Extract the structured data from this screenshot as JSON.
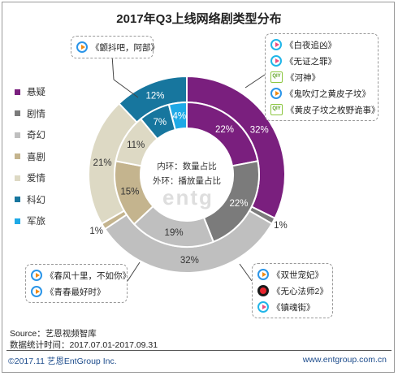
{
  "title": "2017年Q3上线网络剧类型分布",
  "legend": [
    {
      "label": "悬疑",
      "color": "#7a1f7e"
    },
    {
      "label": "剧情",
      "color": "#7b7b7b"
    },
    {
      "label": "奇幻",
      "color": "#bfbfbf"
    },
    {
      "label": "喜剧",
      "color": "#c4b48e"
    },
    {
      "label": "爱情",
      "color": "#ddd9c4"
    },
    {
      "label": "科幻",
      "color": "#17769e"
    },
    {
      "label": "军旅",
      "color": "#1ea9e6"
    }
  ],
  "center": {
    "inner": "内环：数量占比",
    "outer": "外环：播放量占比"
  },
  "watermark": "entg",
  "chart_data": {
    "type": "donut",
    "title": "2017年Q3上线网络剧类型分布",
    "categories": [
      "悬疑",
      "剧情",
      "奇幻",
      "喜剧",
      "爱情",
      "科幻",
      "军旅"
    ],
    "series": [
      {
        "name": "播放量占比",
        "ring": "outer",
        "values": [
          32,
          1,
          32,
          1,
          21,
          12,
          0
        ],
        "labels": [
          "32%",
          "1%",
          "32%",
          "1%",
          "21%",
          "12%",
          ""
        ]
      },
      {
        "name": "数量占比",
        "ring": "inner",
        "values": [
          22,
          22,
          19,
          15,
          11,
          7,
          4
        ],
        "labels": [
          "22%",
          "22%",
          "19%",
          "15%",
          "11%",
          "7%",
          "4%"
        ]
      }
    ]
  },
  "callouts": {
    "top_left": [
      {
        "icon": "tencent",
        "text": "《颤抖吧，阿部》"
      }
    ],
    "top_right": [
      {
        "icon": "youku",
        "text": "《白夜追凶》"
      },
      {
        "icon": "youku",
        "text": "《无证之罪》"
      },
      {
        "icon": "iqiyi",
        "text": "《河神》"
      },
      {
        "icon": "tencent",
        "text": "《鬼吹灯之黄皮子坟》"
      },
      {
        "icon": "iqiyi",
        "text": "《黄皮子坟之枚野诡事》"
      }
    ],
    "bottom_left": [
      {
        "icon": "tencent",
        "text": "《春风十里，不如你》"
      },
      {
        "icon": "tencent",
        "text": "《青春最好时》"
      }
    ],
    "bottom_right": [
      {
        "icon": "tencent",
        "text": "《双世宠妃》"
      },
      {
        "icon": "mango",
        "text": "《无心法师2》"
      },
      {
        "icon": "youku",
        "text": "《镇魂街》"
      }
    ]
  },
  "icon_text": {
    "iqiyi": "QIY"
  },
  "source": {
    "line1": "Source：艺恩视频智库",
    "line2": "数据统计时间：2017.07.01-2017.09.31"
  },
  "footer": {
    "left": "©2017.11 艺恩EntGroup Inc.",
    "right": "www.entgroup.com.cn"
  }
}
